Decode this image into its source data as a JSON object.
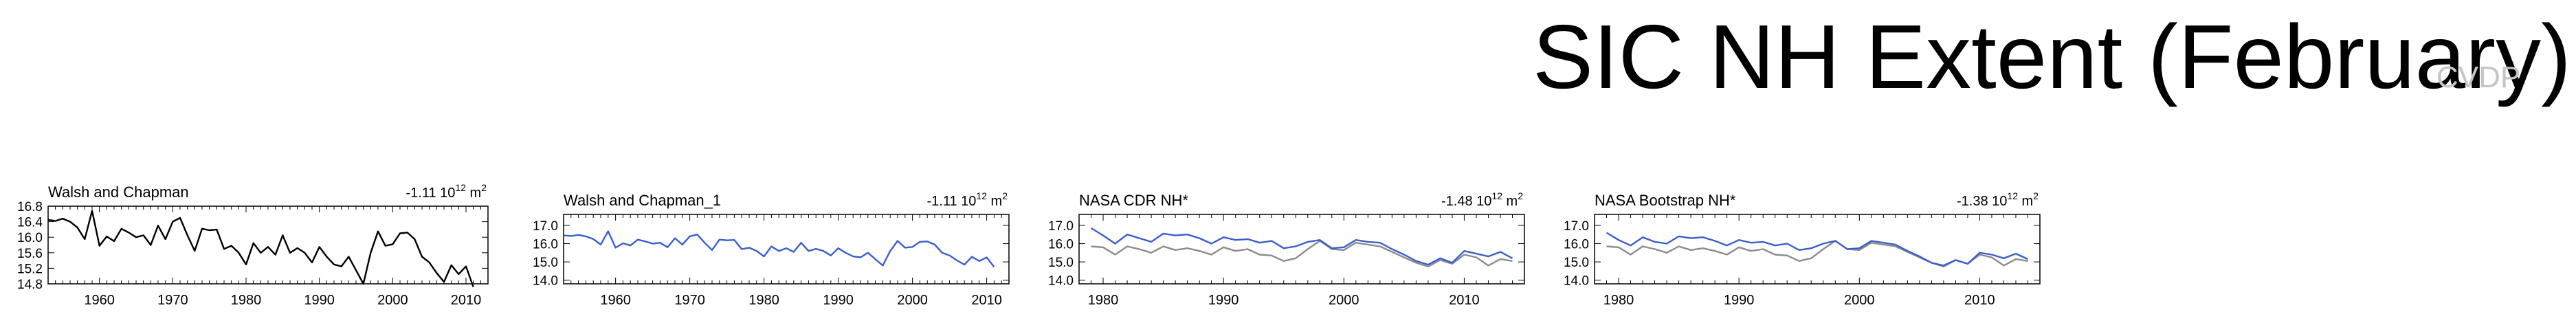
{
  "page": {
    "title": "SIC NH Extent (February)",
    "watermark": "CVDP"
  },
  "chart_data": [
    {
      "type": "line",
      "title": "Walsh and Chapman",
      "trend": {
        "value": "-1.11",
        "unit": "10",
        "exp": "12",
        "suffix": "m",
        "suffix_exp": "2"
      },
      "xlim": [
        1953,
        2013
      ],
      "ylim": [
        14.8,
        16.8
      ],
      "xticks": [
        1960,
        1970,
        1980,
        1990,
        2000,
        2010
      ],
      "yticks": [
        16.8,
        16.4,
        16.0,
        15.6,
        15.2,
        14.8
      ],
      "ytick_labels": [
        "16.8",
        "16.4",
        "16.0",
        "15.6",
        "15.2",
        "14.8"
      ],
      "xtick_labels": [
        "1960",
        "1970",
        "1980",
        "1990",
        "2000",
        "2010"
      ],
      "colors": {
        "series": "#000000"
      },
      "x": [
        1953,
        1954,
        1955,
        1956,
        1957,
        1958,
        1959,
        1960,
        1961,
        1962,
        1963,
        1964,
        1965,
        1966,
        1967,
        1968,
        1969,
        1970,
        1971,
        1972,
        1973,
        1974,
        1975,
        1976,
        1977,
        1978,
        1979,
        1980,
        1981,
        1982,
        1983,
        1984,
        1985,
        1986,
        1987,
        1988,
        1989,
        1990,
        1991,
        1992,
        1993,
        1994,
        1995,
        1996,
        1997,
        1998,
        1999,
        2000,
        2001,
        2002,
        2003,
        2004,
        2005,
        2006,
        2007,
        2008,
        2009,
        2010,
        2011
      ],
      "series": [
        {
          "values": [
            16.45,
            16.42,
            16.48,
            16.4,
            16.25,
            15.95,
            16.68,
            15.78,
            16.02,
            15.9,
            16.22,
            16.12,
            16.0,
            16.05,
            15.8,
            16.3,
            15.95,
            16.4,
            16.5,
            16.05,
            15.65,
            16.22,
            16.18,
            16.2,
            15.7,
            15.78,
            15.6,
            15.3,
            15.85,
            15.6,
            15.75,
            15.55,
            16.05,
            15.6,
            15.72,
            15.6,
            15.35,
            15.75,
            15.5,
            15.3,
            15.25,
            15.5,
            15.15,
            14.8,
            15.6,
            16.15,
            15.78,
            15.82,
            16.1,
            16.12,
            15.95,
            15.5,
            15.35,
            15.08,
            14.85,
            15.28,
            15.05,
            15.25,
            14.72
          ]
        }
      ]
    },
    {
      "type": "line",
      "title": "Walsh and Chapman_1",
      "trend": {
        "value": "-1.11",
        "unit": "10",
        "exp": "12",
        "suffix": "m",
        "suffix_exp": "2"
      },
      "xlim": [
        1953,
        2013
      ],
      "ylim": [
        13.8,
        17.6
      ],
      "xticks": [
        1960,
        1970,
        1980,
        1990,
        2000,
        2010
      ],
      "yticks": [
        17.0,
        16.0,
        15.0,
        14.0
      ],
      "ytick_labels": [
        "17.0",
        "16.0",
        "15.0",
        "14.0"
      ],
      "xtick_labels": [
        "1960",
        "1970",
        "1980",
        "1990",
        "2000",
        "2010"
      ],
      "colors": {
        "series": "#3a5fcd"
      },
      "x": [
        1953,
        1954,
        1955,
        1956,
        1957,
        1958,
        1959,
        1960,
        1961,
        1962,
        1963,
        1964,
        1965,
        1966,
        1967,
        1968,
        1969,
        1970,
        1971,
        1972,
        1973,
        1974,
        1975,
        1976,
        1977,
        1978,
        1979,
        1980,
        1981,
        1982,
        1983,
        1984,
        1985,
        1986,
        1987,
        1988,
        1989,
        1990,
        1991,
        1992,
        1993,
        1994,
        1995,
        1996,
        1997,
        1998,
        1999,
        2000,
        2001,
        2002,
        2003,
        2004,
        2005,
        2006,
        2007,
        2008,
        2009,
        2010,
        2011
      ],
      "series": [
        {
          "values": [
            16.45,
            16.42,
            16.48,
            16.4,
            16.25,
            15.95,
            16.68,
            15.78,
            16.02,
            15.9,
            16.22,
            16.12,
            16.0,
            16.05,
            15.8,
            16.3,
            15.95,
            16.4,
            16.5,
            16.05,
            15.65,
            16.22,
            16.18,
            16.2,
            15.7,
            15.78,
            15.6,
            15.3,
            15.85,
            15.6,
            15.75,
            15.55,
            16.05,
            15.6,
            15.72,
            15.6,
            15.35,
            15.75,
            15.5,
            15.3,
            15.25,
            15.5,
            15.15,
            14.8,
            15.6,
            16.15,
            15.78,
            15.82,
            16.1,
            16.12,
            15.95,
            15.5,
            15.35,
            15.08,
            14.85,
            15.28,
            15.05,
            15.25,
            14.72
          ]
        }
      ]
    },
    {
      "type": "line",
      "title": "NASA CDR NH*",
      "trend": {
        "value": "-1.48",
        "unit": "10",
        "exp": "12",
        "suffix": "m",
        "suffix_exp": "2"
      },
      "xlim": [
        1978,
        2015
      ],
      "ylim": [
        13.8,
        17.6
      ],
      "xticks": [
        1980,
        1990,
        2000,
        2010
      ],
      "yticks": [
        17.0,
        16.0,
        15.0,
        14.0
      ],
      "ytick_labels": [
        "17.0",
        "16.0",
        "15.0",
        "14.0"
      ],
      "xtick_labels": [
        "1980",
        "1990",
        "2000",
        "2010"
      ],
      "colors": {
        "main": "#3a5fcd",
        "reference": "#8c8c8c"
      },
      "x": [
        1979,
        1980,
        1981,
        1982,
        1983,
        1984,
        1985,
        1986,
        1987,
        1988,
        1989,
        1990,
        1991,
        1992,
        1993,
        1994,
        1995,
        1996,
        1997,
        1998,
        1999,
        2000,
        2001,
        2002,
        2003,
        2004,
        2005,
        2006,
        2007,
        2008,
        2009,
        2010,
        2011,
        2012,
        2013,
        2014
      ],
      "series": [
        {
          "values": [
            16.85,
            16.45,
            16.0,
            16.5,
            16.3,
            16.1,
            16.55,
            16.45,
            16.5,
            16.3,
            16.0,
            16.35,
            16.2,
            16.25,
            16.05,
            16.15,
            15.75,
            15.85,
            16.1,
            16.2,
            15.75,
            15.8,
            16.2,
            16.1,
            16.05,
            15.7,
            15.4,
            15.05,
            14.85,
            15.2,
            14.95,
            15.6,
            15.45,
            15.3,
            15.55,
            15.2
          ]
        },
        {
          "values": [
            15.85,
            15.8,
            15.4,
            15.85,
            15.7,
            15.5,
            15.85,
            15.65,
            15.75,
            15.6,
            15.4,
            15.8,
            15.6,
            15.7,
            15.4,
            15.35,
            15.05,
            15.2,
            15.7,
            16.15,
            15.7,
            15.65,
            16.05,
            15.95,
            15.85,
            15.55,
            15.25,
            14.95,
            14.75,
            15.1,
            14.9,
            15.4,
            15.25,
            14.8,
            15.15,
            15.05
          ]
        }
      ]
    },
    {
      "type": "line",
      "title": "NASA Bootstrap NH*",
      "trend": {
        "value": "-1.38",
        "unit": "10",
        "exp": "12",
        "suffix": "m",
        "suffix_exp": "2"
      },
      "xlim": [
        1978,
        2015
      ],
      "ylim": [
        13.8,
        17.6
      ],
      "xticks": [
        1980,
        1990,
        2000,
        2010
      ],
      "yticks": [
        17.0,
        16.0,
        15.0,
        14.0
      ],
      "ytick_labels": [
        "17.0",
        "16.0",
        "15.0",
        "14.0"
      ],
      "xtick_labels": [
        "1980",
        "1990",
        "2000",
        "2010"
      ],
      "colors": {
        "main": "#3a5fcd",
        "reference": "#8c8c8c"
      },
      "x": [
        1979,
        1980,
        1981,
        1982,
        1983,
        1984,
        1985,
        1986,
        1987,
        1988,
        1989,
        1990,
        1991,
        1992,
        1993,
        1994,
        1995,
        1996,
        1997,
        1998,
        1999,
        2000,
        2001,
        2002,
        2003,
        2004,
        2005,
        2006,
        2007,
        2008,
        2009,
        2010,
        2011,
        2012,
        2013,
        2014
      ],
      "series": [
        {
          "values": [
            16.6,
            16.2,
            15.9,
            16.35,
            16.1,
            16.0,
            16.4,
            16.3,
            16.35,
            16.15,
            15.9,
            16.2,
            16.05,
            16.1,
            15.9,
            16.0,
            15.65,
            15.75,
            16.0,
            16.15,
            15.7,
            15.75,
            16.15,
            16.05,
            15.95,
            15.6,
            15.3,
            14.95,
            14.8,
            15.1,
            14.9,
            15.5,
            15.4,
            15.2,
            15.45,
            15.15
          ]
        },
        {
          "values": [
            15.85,
            15.8,
            15.4,
            15.85,
            15.7,
            15.5,
            15.85,
            15.65,
            15.75,
            15.6,
            15.4,
            15.8,
            15.6,
            15.7,
            15.4,
            15.35,
            15.05,
            15.2,
            15.7,
            16.15,
            15.7,
            15.65,
            16.05,
            15.95,
            15.85,
            15.55,
            15.25,
            14.95,
            14.75,
            15.1,
            14.9,
            15.4,
            15.25,
            14.8,
            15.15,
            15.05
          ]
        }
      ]
    }
  ]
}
